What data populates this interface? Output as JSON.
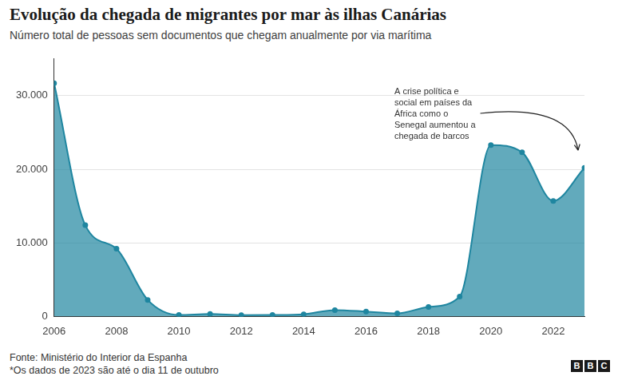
{
  "chart_data": {
    "type": "area",
    "title": "Evolução da chegada de migrantes por mar às ilhas Canárias",
    "subtitle": "Número total de pessoas sem documentos que chegam anualmente por via marítima",
    "x": [
      2006,
      2007,
      2008,
      2009,
      2010,
      2011,
      2012,
      2013,
      2014,
      2015,
      2016,
      2017,
      2018,
      2019,
      2020,
      2021,
      2022,
      2023
    ],
    "values": [
      31700,
      12400,
      9200,
      2250,
      200,
      340,
      170,
      200,
      300,
      870,
      670,
      420,
      1300,
      2700,
      23300,
      22300,
      15700,
      20200
    ],
    "color": "#1f86a0",
    "marker": "circle",
    "xlim": [
      2006,
      2023
    ],
    "xticks": [
      2006,
      2008,
      2010,
      2012,
      2014,
      2016,
      2018,
      2020,
      2022
    ],
    "ylim": [
      0,
      35000
    ],
    "yticks": [
      0,
      {
        "value": 10000,
        "label": "10.000"
      },
      {
        "value": 20000,
        "label": "20.000"
      },
      {
        "value": 30000,
        "label": "30.000"
      }
    ],
    "grid": true,
    "annotation": [
      "A crise política e",
      "social em países da",
      "África como o",
      "Senegal aumentou a",
      "chegada de barcos"
    ],
    "source": "Fonte: Ministério do Interior da Espanha",
    "note": "*Os dados de 2023 são até o dia 11 de outubro",
    "logo": "BBC"
  }
}
